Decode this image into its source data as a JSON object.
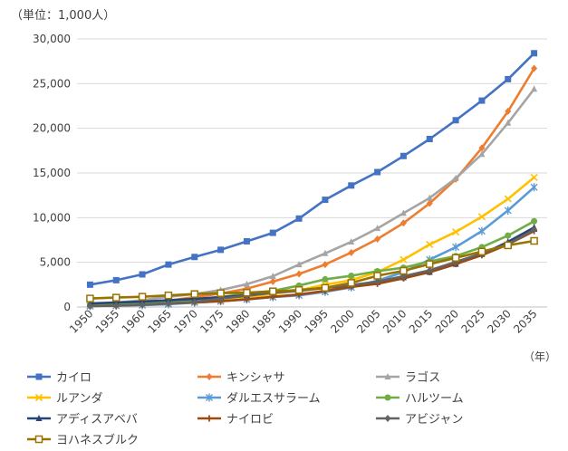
{
  "chart_data": {
    "type": "line",
    "unit_label": "（単位：1,000人）",
    "xlabel": "（年）",
    "ylabel": "",
    "x": [
      1950,
      1955,
      1960,
      1965,
      1970,
      1975,
      1980,
      1985,
      1990,
      1995,
      2000,
      2005,
      2010,
      2015,
      2020,
      2025,
      2030,
      2035
    ],
    "ylim": [
      0,
      30000
    ],
    "yticks": [
      0,
      5000,
      10000,
      15000,
      20000,
      25000,
      30000
    ],
    "ytick_labels": [
      "0",
      "5,000",
      "10,000",
      "15,000",
      "20,000",
      "25,000",
      "30,000"
    ],
    "grid": true,
    "legend_position": "bottom",
    "series": [
      {
        "name": "カイロ",
        "color": "#4472c4",
        "marker": "square",
        "values": [
          2500,
          3000,
          3650,
          4750,
          5600,
          6400,
          7350,
          8300,
          9900,
          12000,
          13600,
          15100,
          16900,
          18800,
          20900,
          23100,
          25500,
          28400
        ]
      },
      {
        "name": "キンシャサ",
        "color": "#ed7d31",
        "marker": "diamond",
        "values": [
          200,
          400,
          450,
          700,
          1100,
          1500,
          2050,
          2850,
          3700,
          4750,
          6100,
          7600,
          9400,
          11600,
          14300,
          17800,
          21900,
          26700
        ]
      },
      {
        "name": "ラゴス",
        "color": "#a5a5a5",
        "marker": "triangle",
        "values": [
          300,
          500,
          750,
          1150,
          1450,
          1900,
          2550,
          3450,
          4750,
          6000,
          7300,
          8800,
          10500,
          12200,
          14400,
          17100,
          20600,
          24400
        ]
      },
      {
        "name": "ルアンダ",
        "color": "#ffc000",
        "marker": "x",
        "values": [
          150,
          250,
          300,
          400,
          550,
          800,
          1100,
          1450,
          1850,
          2500,
          3000,
          3900,
          5300,
          7000,
          8400,
          10100,
          12100,
          14500
        ]
      },
      {
        "name": "ダルエスサラーム",
        "color": "#5b9bd5",
        "marker": "star",
        "values": [
          100,
          150,
          200,
          300,
          500,
          650,
          850,
          1100,
          1300,
          1700,
          2200,
          2950,
          3900,
          5300,
          6700,
          8500,
          10800,
          13400
        ]
      },
      {
        "name": "ハルツーム",
        "color": "#70ad47",
        "marker": "circle",
        "values": [
          200,
          300,
          400,
          550,
          800,
          1100,
          1500,
          1800,
          2400,
          3100,
          3500,
          4000,
          4400,
          5100,
          5700,
          6700,
          8000,
          9600
        ]
      },
      {
        "name": "アディスアベバ",
        "color": "#264478",
        "marker": "triangle",
        "values": [
          400,
          500,
          600,
          750,
          900,
          1100,
          1300,
          1650,
          1850,
          2150,
          2400,
          2750,
          3300,
          3900,
          4800,
          5900,
          7300,
          8900
        ]
      },
      {
        "name": "ナイロビ",
        "color": "#9e480e",
        "marker": "plus",
        "values": [
          100,
          150,
          250,
          400,
          500,
          650,
          850,
          1150,
          1400,
          1800,
          2250,
          2600,
          3200,
          3900,
          4800,
          5800,
          7000,
          8500
        ]
      },
      {
        "name": "アビジャン",
        "color": "#636363",
        "marker": "diamond",
        "values": [
          100,
          150,
          250,
          400,
          550,
          950,
          1250,
          1600,
          1800,
          2150,
          2450,
          2850,
          3450,
          4100,
          5050,
          6000,
          7050,
          8650
        ]
      },
      {
        "name": "ヨハネスブルク",
        "color": "#997300",
        "marker": "square-open",
        "values": [
          950,
          1050,
          1150,
          1300,
          1450,
          1550,
          1600,
          1750,
          1900,
          2150,
          2700,
          3500,
          4050,
          4800,
          5500,
          6200,
          6900,
          7400
        ]
      }
    ]
  }
}
